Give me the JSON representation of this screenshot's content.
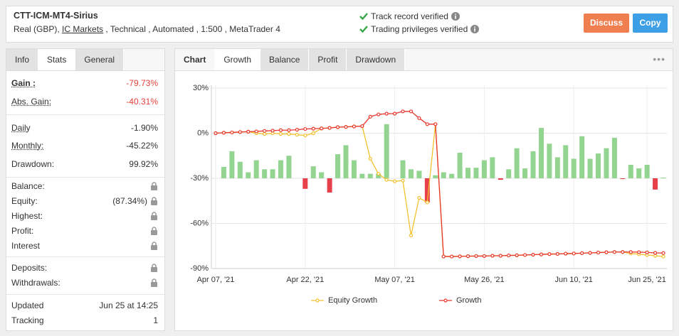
{
  "header": {
    "title": "CTT-ICM-MT4-Sirius",
    "account_type": "Real (GBP),",
    "broker": "IC Markets",
    "details": ", Technical , Automated , 1:500 , MetaTrader 4",
    "verifications": [
      "Track record verified",
      "Trading privileges verified"
    ],
    "buttons": [
      "Discuss",
      "Copy"
    ]
  },
  "stats": {
    "tabs": [
      "Info",
      "Stats",
      "General"
    ],
    "active_tab": 1,
    "groups": [
      [
        {
          "label": "Gain :",
          "value": "-79.73%",
          "color": "#e8413a",
          "emphasis": true
        },
        {
          "label": "Abs. Gain:",
          "value": "-40.31%",
          "color": "#e8413a"
        }
      ],
      [
        {
          "label": "Daily",
          "value": "-1.90%"
        },
        {
          "label": "Monthly:",
          "value": "-45.22%"
        },
        {
          "label": "Drawdown:",
          "value": "99.92%"
        }
      ],
      [
        {
          "label": "Balance:",
          "locked": true
        },
        {
          "label": "Equity:",
          "value": "(87.34%)",
          "locked": true
        },
        {
          "label": "Highest:",
          "locked": true
        },
        {
          "label": "Profit:",
          "locked": true
        },
        {
          "label": "Interest",
          "locked": true
        }
      ],
      [
        {
          "label": "Deposits:",
          "locked": true
        },
        {
          "label": "Withdrawals:",
          "locked": true
        }
      ],
      [
        {
          "label": "Updated",
          "value": "Jun 25 at 14:25"
        },
        {
          "label": "Tracking",
          "value": "1"
        }
      ]
    ]
  },
  "chart_tabs": {
    "tabs": [
      "Chart",
      "Growth",
      "Balance",
      "Profit",
      "Drawdown"
    ],
    "active_tab": 1
  },
  "chart_data": {
    "type": "combo",
    "categories": [
      "Apr 07, '21",
      null,
      null,
      null,
      null,
      null,
      null,
      null,
      null,
      null,
      null,
      "Apr 22, '21",
      null,
      null,
      null,
      null,
      null,
      null,
      null,
      null,
      null,
      null,
      "May 07, '21",
      null,
      null,
      null,
      null,
      null,
      null,
      null,
      null,
      null,
      null,
      "May 26, '21",
      null,
      null,
      null,
      null,
      null,
      null,
      null,
      null,
      null,
      null,
      "Jun 10, '21",
      null,
      null,
      null,
      null,
      null,
      null,
      null,
      null,
      "Jun 25, '21",
      null,
      null
    ],
    "ylim": [
      -90,
      30
    ],
    "yticks": [
      {
        "value": 30,
        "label": "30%"
      },
      {
        "value": 0,
        "label": "0%"
      },
      {
        "value": -30,
        "label": "-30%"
      },
      {
        "value": -60,
        "label": "-60%"
      },
      {
        "value": -90,
        "label": "-90%"
      }
    ],
    "y2lim": [
      -60,
      60
    ],
    "grid": true,
    "legend": "bottom",
    "series": [
      {
        "type": "bar",
        "axis": "y2",
        "color": "#92d490",
        "negative_color": "#e8404a",
        "values": [
          null,
          7.6,
          18,
          11,
          4,
          12,
          6,
          6,
          12,
          15,
          null,
          -7,
          8,
          4,
          -9.5,
          16,
          22,
          12,
          3,
          3,
          3,
          36,
          null,
          12,
          6,
          5,
          -16,
          2,
          4,
          3,
          17,
          7,
          7,
          12,
          14,
          -1,
          6,
          20,
          6.6,
          18,
          33.5,
          23,
          14,
          22,
          13,
          28,
          13,
          16.5,
          20,
          27,
          -0.5,
          9,
          6.6,
          9,
          -7.5,
          0.5
        ]
      },
      {
        "type": "line",
        "name": "Equity Growth",
        "color": "#f2c12e",
        "values": [
          0,
          0.3,
          0.5,
          0.8,
          1,
          0,
          -0.5,
          0,
          -0.5,
          -0.5,
          -1,
          -1.5,
          0,
          3.2,
          3.5,
          4,
          4.2,
          4.5,
          4.7,
          -17,
          -27,
          -31,
          -32,
          -31.5,
          -68,
          -43,
          -46,
          6,
          -82,
          -82,
          -81.9,
          -81.8,
          -81.7,
          -81.7,
          -81.5,
          -81.5,
          -81.3,
          -81.2,
          -81,
          -80.8,
          -80.6,
          -80.4,
          -80.3,
          -80.1,
          -80,
          -79.8,
          -79.6,
          -79.4,
          -79.2,
          -79,
          -79,
          -80,
          -80.5,
          -81,
          -81.5,
          -82
        ]
      },
      {
        "type": "line",
        "name": "Growth",
        "color": "#e8362c",
        "values": [
          0,
          0.3,
          0.5,
          0.8,
          1,
          1.2,
          1.5,
          1.7,
          2,
          2,
          2.3,
          2.8,
          3,
          3.2,
          3.5,
          4,
          4.2,
          4.5,
          4.7,
          11,
          12.5,
          13,
          13,
          14.5,
          14.5,
          10,
          6,
          6,
          -82,
          -82,
          -81.9,
          -81.8,
          -81.7,
          -81.7,
          -81.5,
          -81.5,
          -81.3,
          -81.2,
          -81,
          -80.8,
          -80.6,
          -80.4,
          -80.3,
          -80.1,
          -80,
          -79.8,
          -79.6,
          -79.4,
          -79.2,
          -79,
          -79,
          -79,
          -79.1,
          -79.3,
          -79.6,
          -79.7
        ]
      }
    ]
  }
}
